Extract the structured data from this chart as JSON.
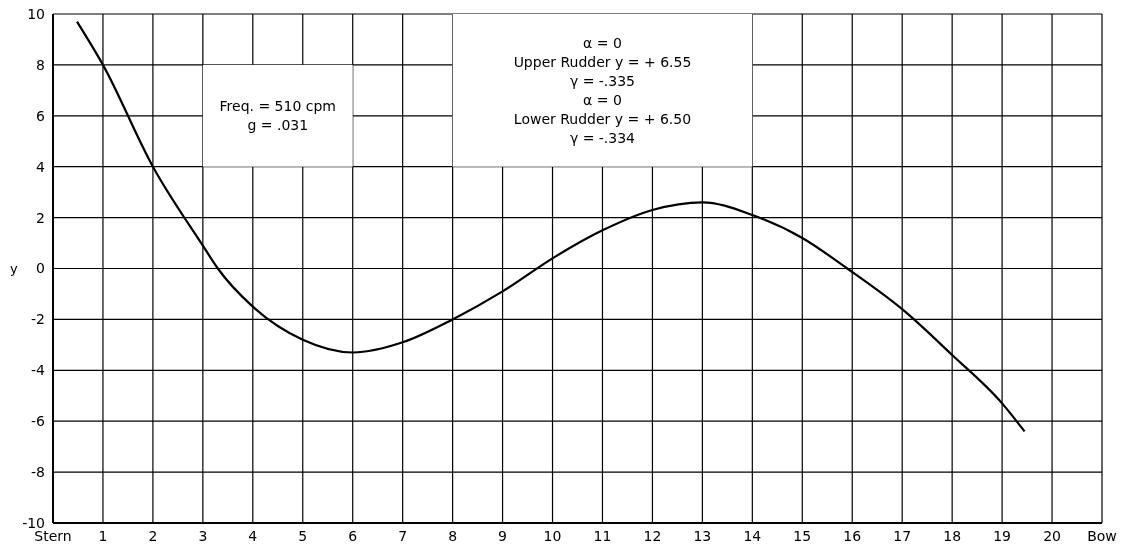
{
  "chart_data": {
    "type": "line",
    "ylabel": "y",
    "x": [
      0.48,
      1,
      2,
      3,
      3.3,
      4,
      5,
      6,
      7,
      8,
      9,
      10,
      11,
      12,
      13,
      14,
      15,
      15.9,
      17,
      18,
      19,
      19.45
    ],
    "series": [
      {
        "color": "#000000",
        "values": [
          9.7,
          8,
          4,
          0.9,
          0,
          -1.5,
          -2.8,
          -3.3,
          -2.9,
          -2.0,
          -0.9,
          0.4,
          1.5,
          2.3,
          2.6,
          2.1,
          1.2,
          0,
          -1.6,
          -3.4,
          -5.3,
          -6.4
        ]
      }
    ],
    "xlim": [
      0,
      21
    ],
    "xticks": [
      {
        "value": 0,
        "label": "Stern"
      },
      1,
      2,
      3,
      4,
      5,
      6,
      7,
      8,
      9,
      10,
      11,
      12,
      13,
      14,
      15,
      16,
      17,
      18,
      19,
      20,
      {
        "value": 21,
        "label": "Bow"
      }
    ],
    "ylim": [
      -10,
      10
    ],
    "yticks": [
      -10,
      -8,
      -6,
      -4,
      -2,
      0,
      2,
      4,
      6,
      8,
      10
    ],
    "grid": true,
    "legend": false,
    "marker": "none",
    "line_style": "solid",
    "annotations": [
      "Freq. = 510 cpm\ng = .031",
      "α = 0\nUpper Rudder  y = + 6.55\nγ = -.335\nα = 0\nLower Rudder  y = + 6.50\nγ = -.334"
    ]
  }
}
